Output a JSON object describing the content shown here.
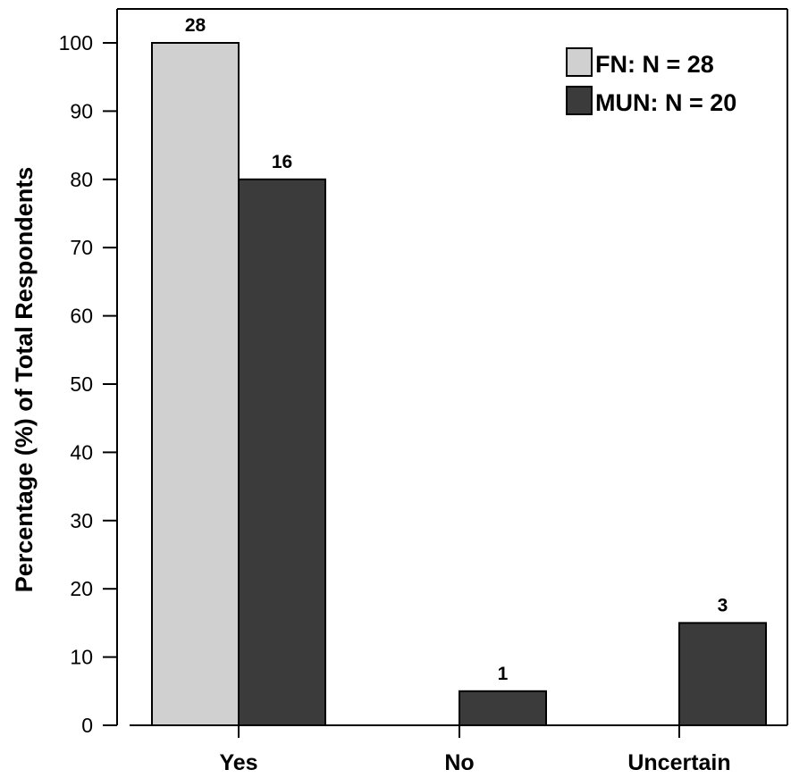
{
  "chart_data": {
    "type": "bar",
    "categories": [
      "Yes",
      "No",
      "Uncertain"
    ],
    "series": [
      {
        "name": "FN: N = 28",
        "color": "#d0d0d0",
        "values": [
          100,
          0,
          0
        ],
        "labels": [
          "28",
          "",
          ""
        ]
      },
      {
        "name": "MUN: N = 20",
        "color": "#3b3b3b",
        "values": [
          80,
          5,
          15
        ],
        "labels": [
          "16",
          "1",
          "3"
        ]
      }
    ],
    "title": "",
    "xlabel": "",
    "ylabel": "Percentage (%) of Total Respondents",
    "ylim": [
      0,
      100
    ],
    "yticks": [
      0,
      10,
      20,
      30,
      40,
      50,
      60,
      70,
      80,
      90,
      100
    ],
    "grid": false,
    "legend_position": "top-right"
  }
}
